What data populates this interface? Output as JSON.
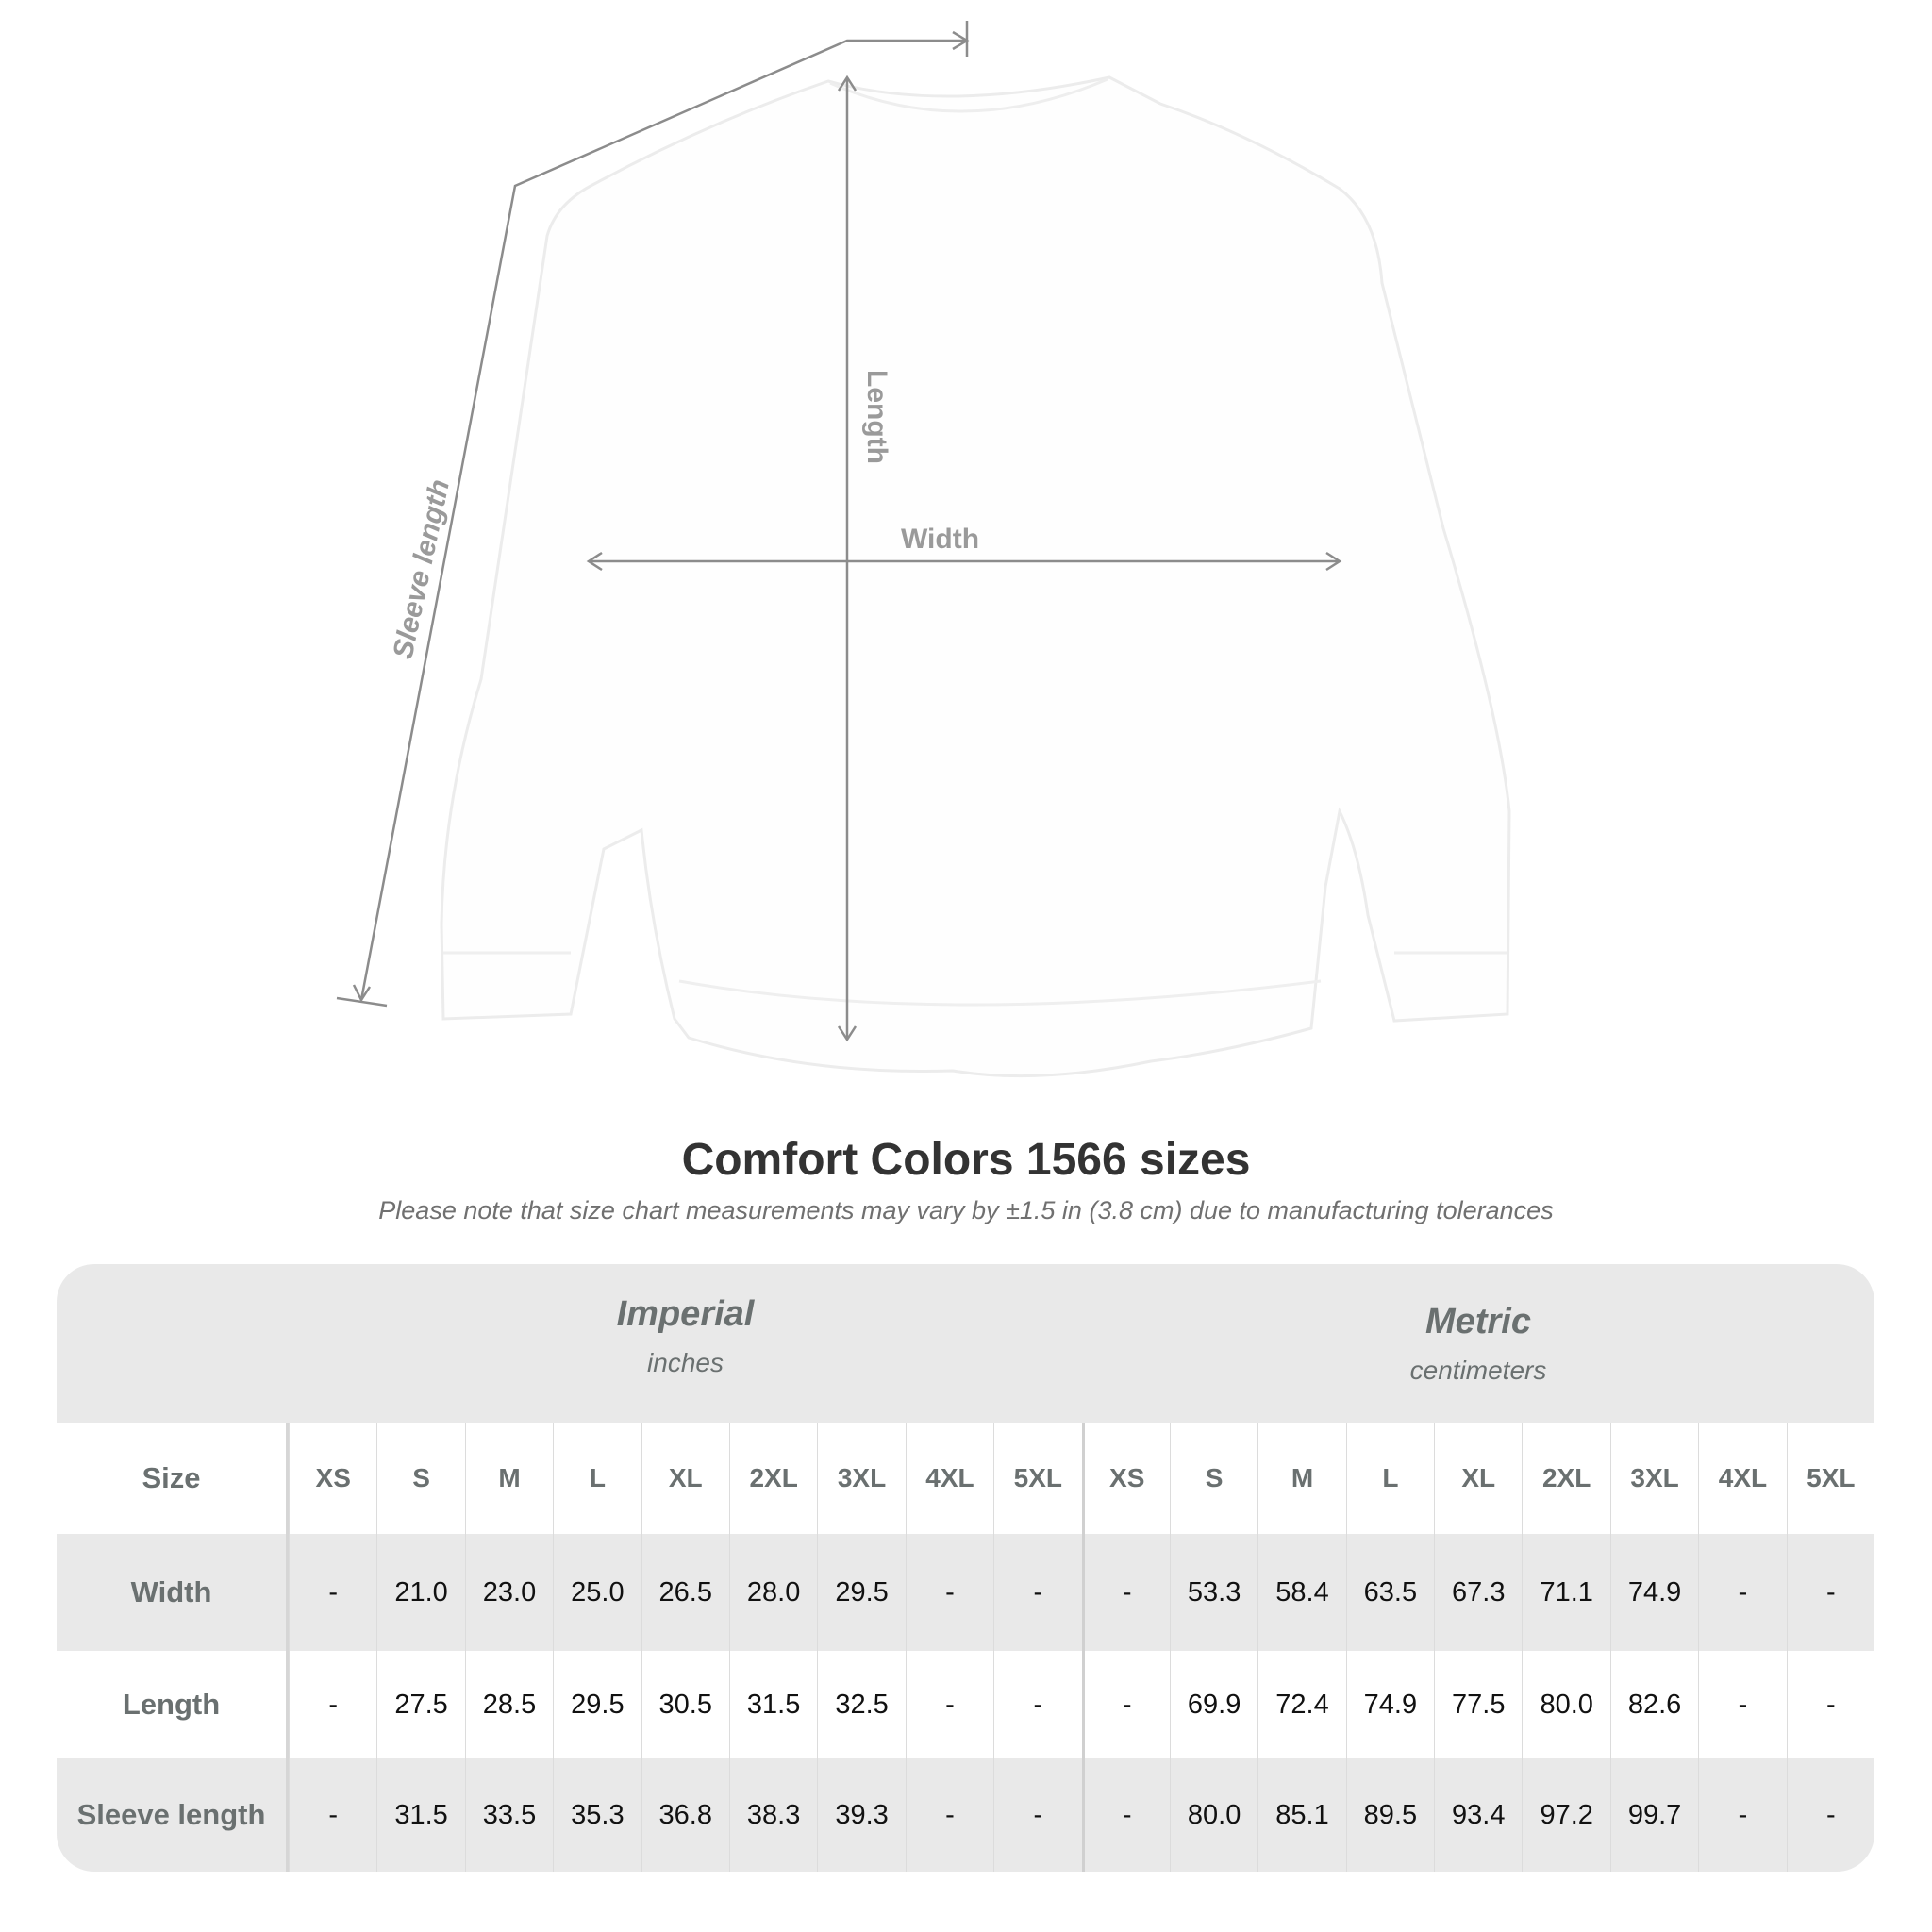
{
  "diagram": {
    "labels": {
      "length": "Length",
      "width": "Width",
      "sleeve_length": "Sleeve length"
    },
    "colors": {
      "lines": "#8c8c8c",
      "garment": "#ffffff"
    }
  },
  "title": "Comfort Colors 1566 sizes",
  "note": "Please note that size chart measurements may vary by ±1.5 in (3.8 cm) due to manufacturing tolerances",
  "table": {
    "imperial": {
      "name": "Imperial",
      "unit": "inches"
    },
    "metric": {
      "name": "Metric",
      "unit": "centimeters"
    },
    "size_label": "Size",
    "sizes": [
      "XS",
      "S",
      "M",
      "L",
      "XL",
      "2XL",
      "3XL",
      "4XL",
      "5XL"
    ],
    "rows": [
      {
        "label": "Width",
        "imperial": [
          "-",
          "21.0",
          "23.0",
          "25.0",
          "26.5",
          "28.0",
          "29.5",
          "-",
          "-"
        ],
        "metric": [
          "-",
          "53.3",
          "58.4",
          "63.5",
          "67.3",
          "71.1",
          "74.9",
          "-",
          "-"
        ]
      },
      {
        "label": "Length",
        "imperial": [
          "-",
          "27.5",
          "28.5",
          "29.5",
          "30.5",
          "31.5",
          "32.5",
          "-",
          "-"
        ],
        "metric": [
          "-",
          "69.9",
          "72.4",
          "74.9",
          "77.5",
          "80.0",
          "82.6",
          "-",
          "-"
        ]
      },
      {
        "label": "Sleeve length",
        "imperial": [
          "-",
          "31.5",
          "33.5",
          "35.3",
          "36.8",
          "38.3",
          "39.3",
          "-",
          "-"
        ],
        "metric": [
          "-",
          "80.0",
          "85.1",
          "89.5",
          "93.4",
          "97.2",
          "99.7",
          "-",
          "-"
        ]
      }
    ]
  }
}
